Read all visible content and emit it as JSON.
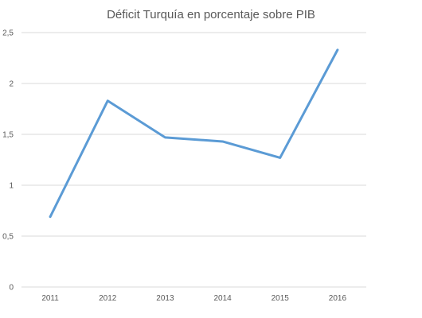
{
  "chart_data": {
    "type": "line",
    "title": "Déficit Turquía en porcentaje sobre PIB",
    "xlabel": "",
    "ylabel": "",
    "categories": [
      "2011",
      "2012",
      "2013",
      "2014",
      "2015",
      "2016"
    ],
    "series": [
      {
        "values": [
          0.69,
          1.83,
          1.47,
          1.43,
          1.27,
          2.33
        ],
        "color": "#5b9bd5"
      }
    ],
    "ylim": [
      0,
      2.5
    ],
    "yticks": [
      "0",
      "0,5",
      "1",
      "1,5",
      "2",
      "2,5"
    ],
    "ytick_values": [
      0,
      0.5,
      1,
      1.5,
      2,
      2.5
    ],
    "grid": "horizontal",
    "legend": "none"
  }
}
